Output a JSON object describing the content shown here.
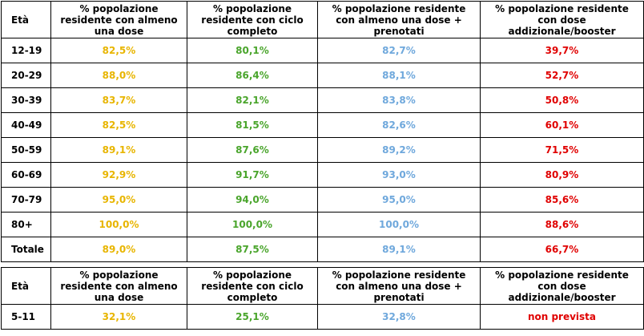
{
  "tables": [
    {
      "header": [
        "Età",
        "% popolazione residente con almeno una dose",
        "% popolazione residente con ciclo completo",
        "% popolazione residente con almeno una dose + prenotati",
        "% popolazione residente con dose addizionale/booster"
      ],
      "rows": [
        [
          "12-19",
          "82,5%",
          "80,1%",
          "82,7%",
          "39,7%"
        ],
        [
          "20-29",
          "88,0%",
          "86,4%",
          "88,1%",
          "52,7%"
        ],
        [
          "30-39",
          "83,7%",
          "82,1%",
          "83,8%",
          "50,8%"
        ],
        [
          "40-49",
          "82,5%",
          "81,5%",
          "82,6%",
          "60,1%"
        ],
        [
          "50-59",
          "89,1%",
          "87,6%",
          "89,2%",
          "71,5%"
        ],
        [
          "60-69",
          "92,9%",
          "91,7%",
          "93,0%",
          "80,9%"
        ],
        [
          "70-79",
          "95,0%",
          "94,0%",
          "95,0%",
          "85,6%"
        ],
        [
          "80+",
          "100,0%",
          "100,0%",
          "100,0%",
          "88,6%"
        ],
        [
          "Totale",
          "89,0%",
          "87,5%",
          "89,1%",
          "66,7%"
        ]
      ]
    },
    {
      "header": [
        "Età",
        "% popolazione residente con almeno una dose",
        "% popolazione residente con ciclo completo",
        "% popolazione residente con almeno una dose + prenotati",
        "% popolazione residente con dose addizionale/booster"
      ],
      "rows": [
        [
          "5-11",
          "32,1%",
          "25,1%",
          "32,8%",
          "non prevista"
        ]
      ]
    }
  ]
}
